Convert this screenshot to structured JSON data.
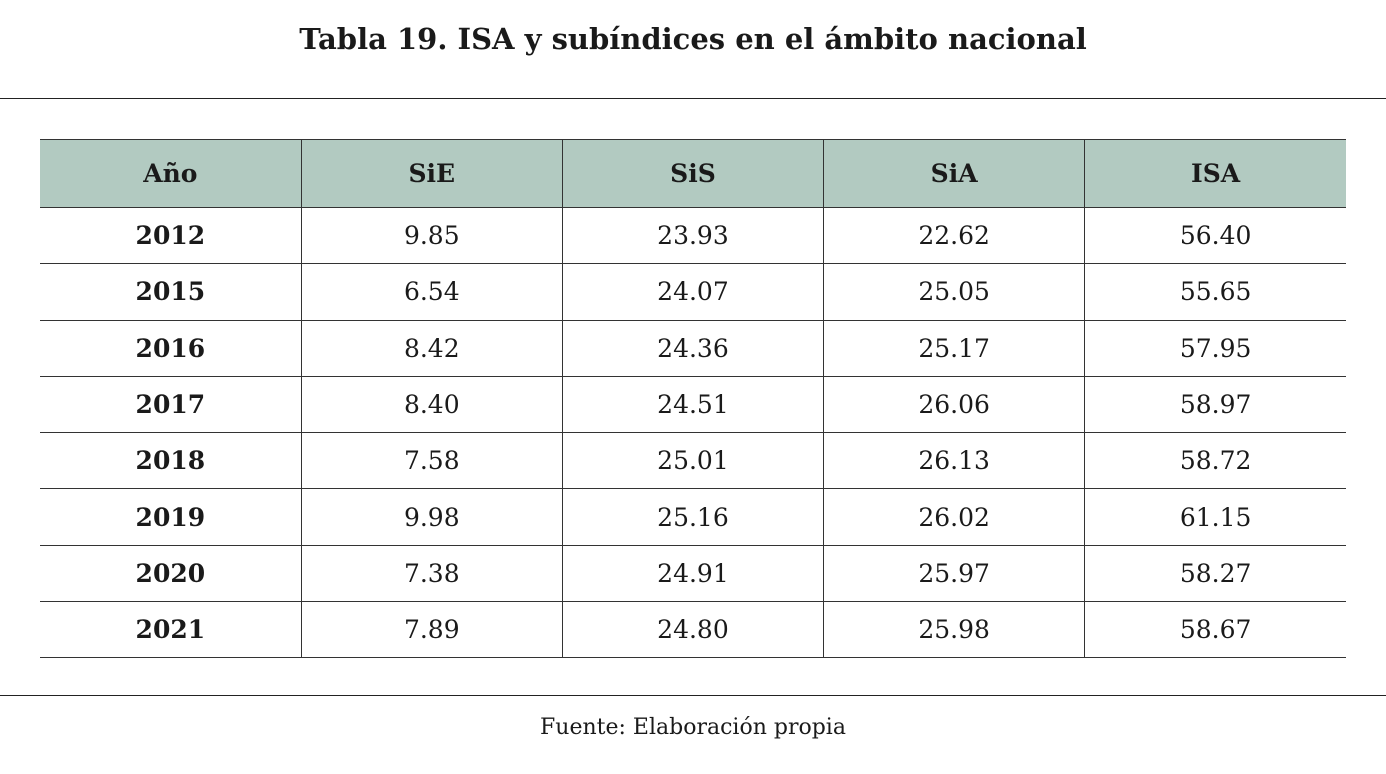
{
  "title": "Tabla 19. ISA y subíndices en el ámbito nacional",
  "table": {
    "headers": [
      "Año",
      "SiE",
      "SiS",
      "SiA",
      "ISA"
    ],
    "rows": [
      [
        "2012",
        "9.85",
        "23.93",
        "22.62",
        "56.40"
      ],
      [
        "2015",
        "6.54",
        "24.07",
        "25.05",
        "55.65"
      ],
      [
        "2016",
        "8.42",
        "24.36",
        "25.17",
        "57.95"
      ],
      [
        "2017",
        "8.40",
        "24.51",
        "26.06",
        "58.97"
      ],
      [
        "2018",
        "7.58",
        "25.01",
        "26.13",
        "58.72"
      ],
      [
        "2019",
        "9.98",
        "25.16",
        "26.02",
        "61.15"
      ],
      [
        "2020",
        "7.38",
        "24.91",
        "25.97",
        "58.27"
      ],
      [
        "2021",
        "7.89",
        "24.80",
        "25.98",
        "58.67"
      ]
    ]
  },
  "source": "Fuente: Elaboración propia",
  "colors": {
    "header_bg": "#b2cac1",
    "rule": "#222222"
  }
}
